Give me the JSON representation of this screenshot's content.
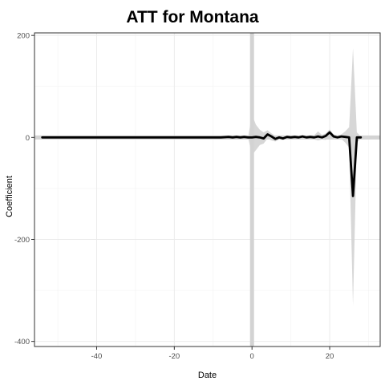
{
  "chart_data": {
    "type": "line",
    "title": "ATT for Montana",
    "xlabel": "Date",
    "ylabel": "Coefficient",
    "xlim": [
      -56,
      33
    ],
    "ylim": [
      -410,
      205
    ],
    "x_ticks": [
      -40,
      -20,
      0,
      20
    ],
    "x_tick_labels": [
      "-40",
      "-20",
      "0",
      "20"
    ],
    "y_ticks": [
      200,
      0,
      -200,
      -400
    ],
    "y_tick_labels": [
      "200",
      "0",
      "-200",
      "-400"
    ],
    "grid": true,
    "legend": "none",
    "reference_lines": {
      "vertical_x": 0,
      "horizontal_y": 0
    },
    "colors": {
      "line": "#000000",
      "band": "#d3d3d3",
      "reference": "#d3d3d3",
      "grid": "#ebebeb",
      "axis": "#333333"
    },
    "series": [
      {
        "x": [
          -54,
          -50,
          -45,
          -40,
          -35,
          -30,
          -25,
          -20,
          -15,
          -10,
          -8,
          -6,
          -5,
          -4,
          -3,
          -2,
          -1,
          0,
          1,
          2,
          3,
          4,
          5,
          6,
          7,
          8,
          9,
          10,
          11,
          12,
          13,
          14,
          15,
          16,
          17,
          18,
          19,
          20,
          21,
          22,
          23,
          24,
          25,
          26,
          27,
          28
        ],
        "y": [
          0,
          0,
          0,
          0,
          0,
          0,
          0,
          0,
          0,
          0,
          0,
          1,
          0,
          1,
          0,
          1,
          0,
          0,
          1,
          0,
          -2,
          6,
          2,
          -3,
          0,
          -2,
          1,
          0,
          1,
          0,
          2,
          0,
          1,
          0,
          2,
          0,
          3,
          10,
          2,
          0,
          2,
          1,
          0,
          -115,
          0,
          0
        ],
        "lower": [
          0,
          0,
          0,
          0,
          0,
          0,
          0,
          0,
          0,
          0,
          0,
          0,
          0,
          0,
          0,
          0,
          0,
          -35,
          -25,
          -15,
          -12,
          -2,
          -6,
          -8,
          -4,
          -5,
          -2,
          -3,
          -2,
          -3,
          -1,
          -3,
          -2,
          -4,
          -6,
          -4,
          -5,
          5,
          -3,
          -4,
          -3,
          -10,
          -20,
          -330,
          -10,
          -2
        ],
        "upper": [
          0,
          0,
          0,
          0,
          0,
          0,
          0,
          0,
          0,
          0,
          0,
          2,
          0,
          2,
          0,
          2,
          0,
          45,
          25,
          15,
          10,
          14,
          8,
          3,
          4,
          2,
          3,
          3,
          3,
          2,
          4,
          3,
          4,
          4,
          12,
          5,
          8,
          16,
          6,
          4,
          6,
          12,
          20,
          175,
          10,
          2
        ]
      }
    ]
  }
}
